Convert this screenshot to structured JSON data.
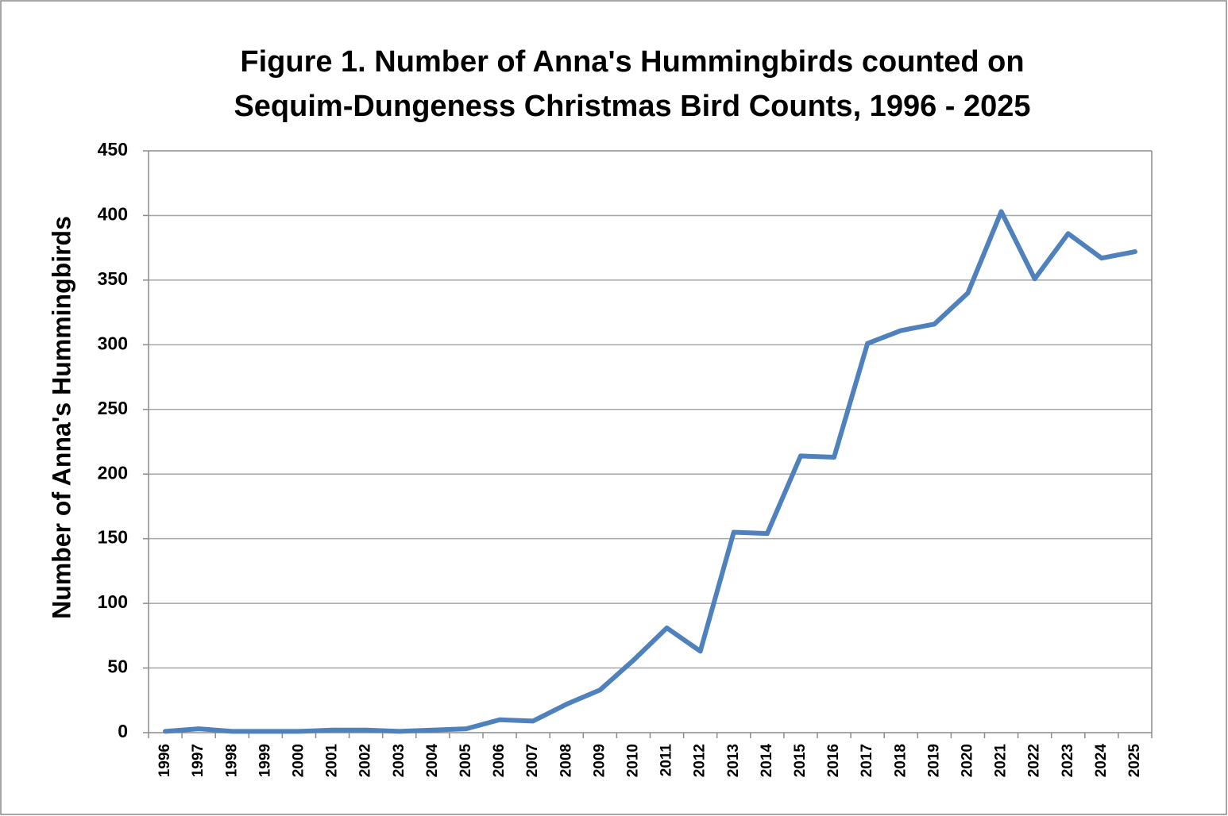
{
  "chart_data": {
    "type": "line",
    "title": [
      "Figure 1. Number of Anna's Hummingbirds counted on",
      "Sequim-Dungeness Christmas Bird Counts, 1996 - 2025"
    ],
    "y_label": "Number of Anna's Hummingbirds",
    "categories": [
      "1996",
      "1997",
      "1998",
      "1999",
      "2000",
      "2001",
      "2002",
      "2003",
      "2004",
      "2005",
      "2006",
      "2007",
      "2008",
      "2009",
      "2010",
      "2011",
      "2012",
      "2013",
      "2014",
      "2015",
      "2016",
      "2017",
      "2018",
      "2019",
      "2020",
      "2021",
      "2022",
      "2023",
      "2024",
      "2025"
    ],
    "series": [
      {
        "name": "Anna's Hummingbirds",
        "color": "#4f81bd",
        "values": [
          1,
          3,
          1,
          1,
          1,
          2,
          2,
          1,
          2,
          3,
          10,
          9,
          22,
          33,
          56,
          81,
          63,
          155,
          154,
          214,
          213,
          301,
          311,
          316,
          340,
          403,
          351,
          386,
          367,
          372
        ]
      }
    ],
    "ylim": [
      0,
      450
    ],
    "yticks": [
      0,
      50,
      100,
      150,
      200,
      250,
      300,
      350,
      400,
      450
    ],
    "grid": true
  }
}
